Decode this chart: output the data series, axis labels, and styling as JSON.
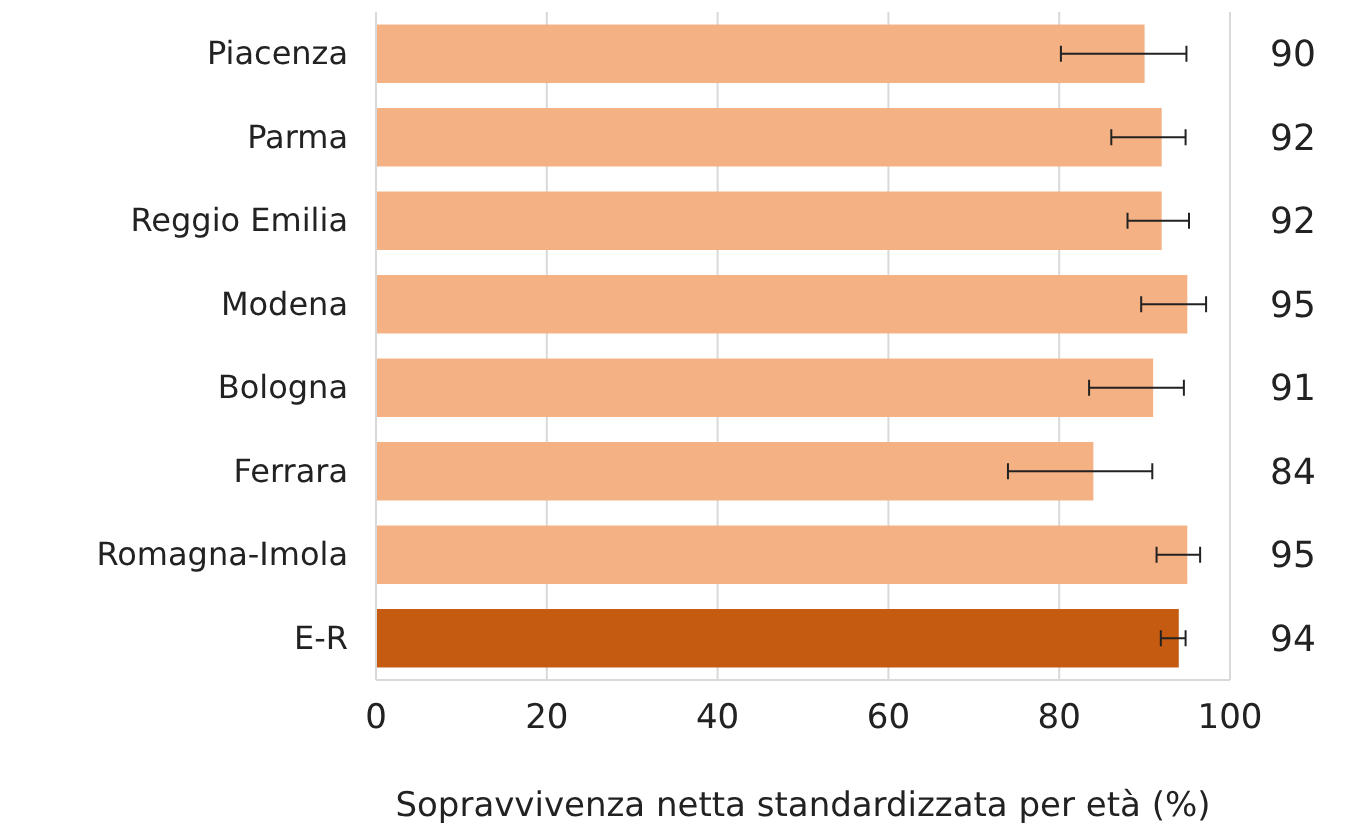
{
  "chart_data": {
    "type": "bar",
    "orientation": "horizontal",
    "xlabel": "Sopravvivenza netta standardizzata per età (%)",
    "categories": [
      "Piacenza",
      "Parma",
      "Reggio Emilia",
      "Modena",
      "Bologna",
      "Ferrara",
      "Romagna-Imola",
      "E-R"
    ],
    "values": [
      90,
      92,
      92,
      95,
      91,
      84,
      95,
      94
    ],
    "colors": [
      "#f4b183",
      "#f4b183",
      "#f4b183",
      "#f4b183",
      "#f4b183",
      "#f4b183",
      "#f4b183",
      "#c55a11"
    ],
    "errors": [
      [
        80.2,
        94.9
      ],
      [
        86.1,
        94.8
      ],
      [
        88.0,
        95.2
      ],
      [
        89.6,
        97.2
      ],
      [
        83.5,
        94.6
      ],
      [
        74.0,
        90.9
      ],
      [
        91.4,
        96.5
      ],
      [
        91.9,
        94.8
      ]
    ],
    "data_labels": true,
    "xlim": [
      0,
      100
    ],
    "xticks": [
      0,
      20,
      40,
      60,
      80,
      100
    ],
    "grid": "x"
  }
}
